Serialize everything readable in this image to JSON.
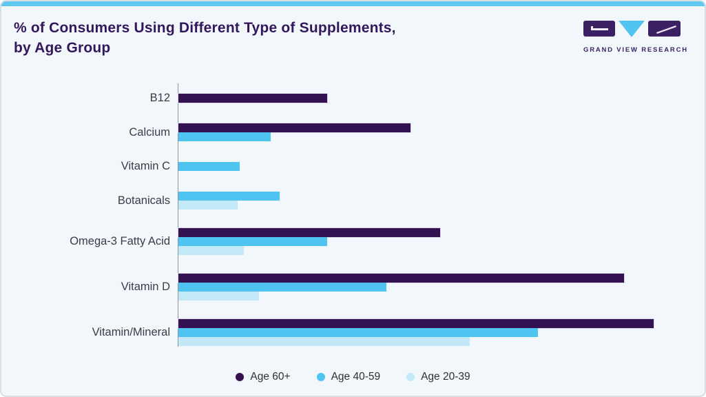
{
  "header": {
    "title_line1": "% of Consumers Using Different Type of Supplements,",
    "title_line2": "by Age Group",
    "logo_text": "GRAND VIEW RESEARCH"
  },
  "legend": [
    {
      "label": "Age 60+",
      "color": "#341150"
    },
    {
      "label": "Age 40-59",
      "color": "#4fc4f0"
    },
    {
      "label": "Age 20-39",
      "color": "#c3e9f8"
    }
  ],
  "chart_data": {
    "type": "bar",
    "orientation": "horizontal",
    "title": "% of Consumers Using Different Type of Supplements, by Age Group",
    "categories": [
      "B12",
      "Calcium",
      "Vitamin C",
      "Botanicals",
      "Omega-3 Fatty Acid",
      "Vitamin D",
      "Vitamin/Mineral"
    ],
    "series": [
      {
        "name": "Age 60+",
        "color": "#341150",
        "values": [
          25,
          39,
          null,
          null,
          44,
          75,
          80
        ]
      },
      {
        "name": "Age 40-59",
        "color": "#4fc4f0",
        "values": [
          null,
          15.5,
          10.3,
          17,
          25,
          35,
          60.5
        ]
      },
      {
        "name": "Age 20-39",
        "color": "#c3e9f8",
        "values": [
          null,
          null,
          null,
          10,
          11,
          13.5,
          49
        ]
      }
    ],
    "xlim": [
      0,
      85
    ],
    "value_unit": "%",
    "x_axis_ticks_visible": false,
    "grid": false,
    "legend_position": "bottom"
  },
  "colors": {
    "background": "#f1f7fa",
    "top_strip": "#5ec8f0",
    "title": "#33175c",
    "axis": "#8f959d",
    "label_text": "#3c3c46",
    "logo_purple": "#3b2163",
    "logo_blue": "#52c4ef"
  }
}
